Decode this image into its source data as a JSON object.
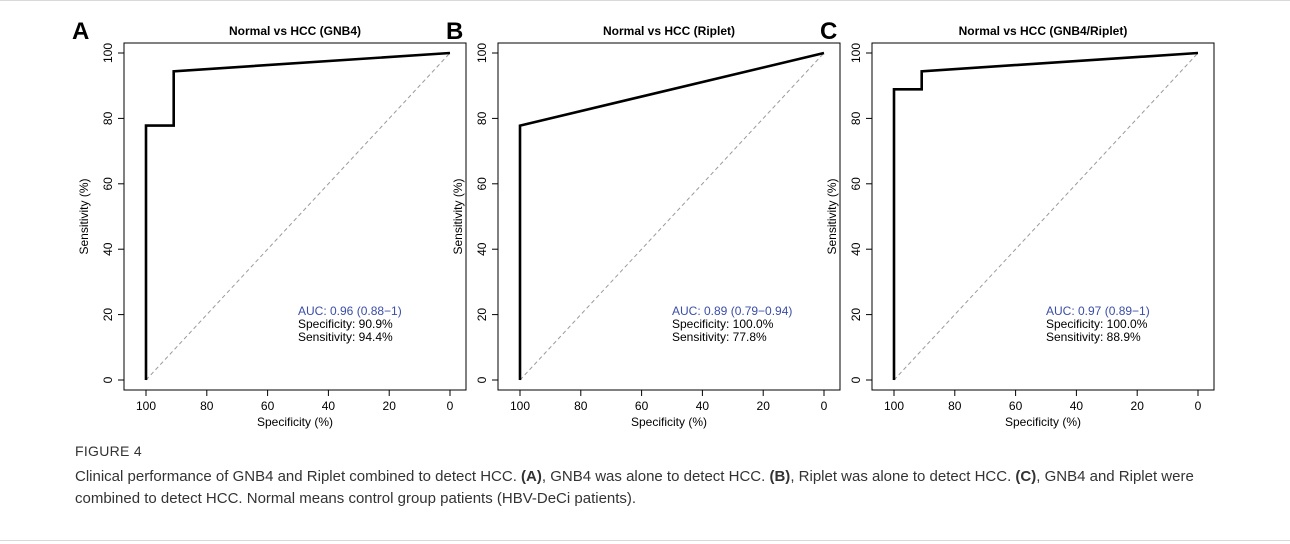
{
  "figure": {
    "label": "FIGURE 4",
    "caption": {
      "intro": "Clinical performance of GNB4 and Riplet combined to detect HCC. ",
      "ref_a": "(A)",
      "text_a": ", GNB4 was alone to detect HCC. ",
      "ref_b": "(B)",
      "text_b": ", Riplet was alone to detect HCC. ",
      "ref_c": "(C)",
      "text_c": ", GNB4 and Riplet were combined to detect HCC. Normal means control group patients (HBV-DeCi patients)."
    }
  },
  "colors": {
    "curve": "#000000",
    "diagonal": "#9a9a9a",
    "auc_text": "#3b4da8",
    "text": "#000000",
    "caption_text": "#333333"
  },
  "chart_data": [
    {
      "type": "line",
      "panel_letter": "A",
      "title": "Normal vs HCC (GNB4)",
      "xlabel": "Specificity (%)",
      "ylabel": "Sensitivity (%)",
      "xlim": [
        100,
        0
      ],
      "ylim": [
        0,
        100
      ],
      "x_reversed": true,
      "xticks": [
        100,
        80,
        60,
        40,
        20,
        0
      ],
      "yticks": [
        0,
        20,
        40,
        60,
        80,
        100
      ],
      "grid": false,
      "reference_line": {
        "x": [
          100,
          0
        ],
        "y": [
          0,
          100
        ],
        "style": "dashed"
      },
      "series": [
        {
          "x": [
            100,
            100,
            90.9,
            90.9,
            0
          ],
          "y": [
            0,
            77.8,
            77.8,
            94.4,
            100
          ]
        }
      ],
      "annotations": {
        "auc": "AUC: 0.96 (0.88−1)",
        "specificity": "Specificity: 90.9%",
        "sensitivity": "Sensitivity: 94.4%"
      }
    },
    {
      "type": "line",
      "panel_letter": "B",
      "title": "Normal vs HCC (Riplet)",
      "xlabel": "Specificity (%)",
      "ylabel": "Sensitivity (%)",
      "xlim": [
        100,
        0
      ],
      "ylim": [
        0,
        100
      ],
      "x_reversed": true,
      "xticks": [
        100,
        80,
        60,
        40,
        20,
        0
      ],
      "yticks": [
        0,
        20,
        40,
        60,
        80,
        100
      ],
      "grid": false,
      "reference_line": {
        "x": [
          100,
          0
        ],
        "y": [
          0,
          100
        ],
        "style": "dashed"
      },
      "series": [
        {
          "x": [
            100,
            100,
            0
          ],
          "y": [
            0,
            77.8,
            100
          ]
        }
      ],
      "annotations": {
        "auc": "AUC: 0.89 (0.79−0.94)",
        "specificity": "Specificity: 100.0%",
        "sensitivity": "Sensitivity: 77.8%"
      }
    },
    {
      "type": "line",
      "panel_letter": "C",
      "title": "Normal vs HCC (GNB4/Riplet)",
      "xlabel": "Specificity (%)",
      "ylabel": "Sensitivity (%)",
      "xlim": [
        100,
        0
      ],
      "ylim": [
        0,
        100
      ],
      "x_reversed": true,
      "xticks": [
        100,
        80,
        60,
        40,
        20,
        0
      ],
      "yticks": [
        0,
        20,
        40,
        60,
        80,
        100
      ],
      "grid": false,
      "reference_line": {
        "x": [
          100,
          0
        ],
        "y": [
          0,
          100
        ],
        "style": "dashed"
      },
      "series": [
        {
          "x": [
            100,
            100,
            90.9,
            90.9,
            0
          ],
          "y": [
            0,
            88.9,
            88.9,
            94.4,
            100
          ]
        }
      ],
      "annotations": {
        "auc": "AUC: 0.97 (0.89−1)",
        "specificity": "Specificity: 100.0%",
        "sensitivity": "Sensitivity: 88.9%"
      }
    }
  ]
}
